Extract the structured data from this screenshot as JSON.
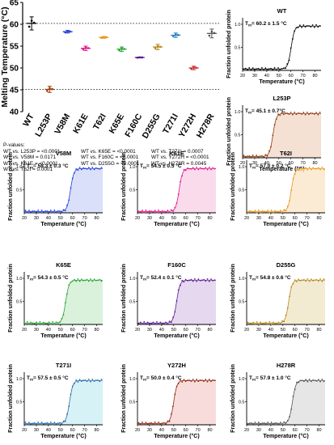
{
  "pvalues": {
    "heading": "P-values:",
    "columns": [
      [
        "WT vs. L253P = <0.0001",
        "WT vs. V58M = 0.0171",
        "WT vs. K61E = <0.0001",
        "WT vs. T62I = 0.0001"
      ],
      [
        "WT vs. K65E = <0.0001",
        "WT vs. F160C = <0.0001",
        "WT vs. D255G = <0.0001"
      ],
      [
        "WT vs. T271I = 0.0007",
        "WT vs. Y272H = <0.0001",
        "WT vs. H278R = 0.0045"
      ]
    ]
  },
  "chart_data": [
    {
      "type": "scatter",
      "ylabel": "Melting Temperature (°C)",
      "ylim": [
        40,
        65
      ],
      "yticks": [
        40,
        45,
        50,
        55,
        60,
        65
      ],
      "categories": [
        "WT",
        "L253P",
        "V58M",
        "K61E",
        "T62I",
        "K65E",
        "F160C",
        "D255G",
        "T271I",
        "Y272H",
        "H278R"
      ],
      "means": [
        60.2,
        45.1,
        58.3,
        54.5,
        57.0,
        54.3,
        52.4,
        54.8,
        57.5,
        50.0,
        57.9
      ],
      "errors": [
        1.5,
        0.7,
        0.3,
        0.5,
        0.2,
        0.5,
        0.1,
        0.6,
        0.5,
        0.4,
        1.0
      ],
      "colors": [
        "#000000",
        "#9a3d0a",
        "#1f3fd6",
        "#e0128c",
        "#e8961a",
        "#27a334",
        "#5b1a8f",
        "#b58b1e",
        "#2a7fc4",
        "#cc2b2b",
        "#555555"
      ],
      "reference_lines": [
        60.2,
        45.1
      ]
    },
    {
      "type": "line",
      "panels": [
        {
          "title": "WT",
          "label_prefix": "T",
          "label_sub": "m",
          "label_text": "= 60.2 ± 1.5 °C",
          "tm": 60.2,
          "color": "#000000",
          "shade": "none"
        },
        {
          "title": "L253P",
          "label_prefix": "T",
          "label_sub": "m",
          "label_text": "= 45.1 ± 0.7°C",
          "tm": 45.1,
          "color": "#8b3a10",
          "shade": "#f2d6c6"
        },
        {
          "title": "V58M",
          "label_prefix": "T",
          "label_sub": "m",
          "label_text": "= 58.3 ± 0.3 °C",
          "tm": 58.3,
          "color": "#1f3fd6",
          "shade": "#cdd5f7"
        },
        {
          "title": "K61E",
          "label_prefix": "T",
          "label_sub": "m",
          "label_text": "= 54.5 ± 0.5 °C",
          "tm": 54.5,
          "color": "#e0128c",
          "shade": "#f8cfe6"
        },
        {
          "title": "T62I",
          "label_prefix": "T",
          "label_sub": "m",
          "label_text": "= 57.0 ± 0.2 °C",
          "tm": 57.0,
          "color": "#e8961a",
          "shade": "#fbe4c6"
        },
        {
          "title": "K65E",
          "label_prefix": "T",
          "label_sub": "m",
          "label_text": "= 54.3 ± 0.5 °C",
          "tm": 54.3,
          "color": "#27a334",
          "shade": "#cdeed0"
        },
        {
          "title": "F160C",
          "label_prefix": "T",
          "label_sub": "m",
          "label_text": "= 52.4 ± 0.1 °C",
          "tm": 52.4,
          "color": "#5b1a8f",
          "shade": "#dccbe9"
        },
        {
          "title": "D255G",
          "label_prefix": "T",
          "label_sub": "m",
          "label_text": "= 54.8 ± 0.6 °C",
          "tm": 54.8,
          "color": "#b58b1e",
          "shade": "#efe3c3"
        },
        {
          "title": "T271I",
          "label_prefix": "T",
          "label_sub": "m",
          "label_text": "= 57.5 ± 0.5 °C",
          "tm": 57.5,
          "color": "#2a6aa8",
          "shade": "#c9eef3"
        },
        {
          "title": "Y272H",
          "label_prefix": "T",
          "label_sub": "m",
          "label_text": "= 50.0 ± 0.4 °C",
          "tm": 50.0,
          "color": "#8b2a10",
          "shade": "#f6d0d0"
        },
        {
          "title": "H278R",
          "label_prefix": "T",
          "label_sub": "m",
          "label_text": "= 57.9 ± 1.0 °C",
          "tm": 57.9,
          "color": "#555555",
          "shade": "#dddddd"
        }
      ],
      "xlabel": "Temperature (°C)",
      "ylabel": "Fraction unfolded protein",
      "xlim": [
        20,
        85
      ],
      "xticks": [
        20,
        30,
        40,
        50,
        60,
        70,
        80
      ],
      "ylim": [
        0,
        1.0
      ],
      "yticks": [
        0.5,
        1.0
      ]
    }
  ]
}
